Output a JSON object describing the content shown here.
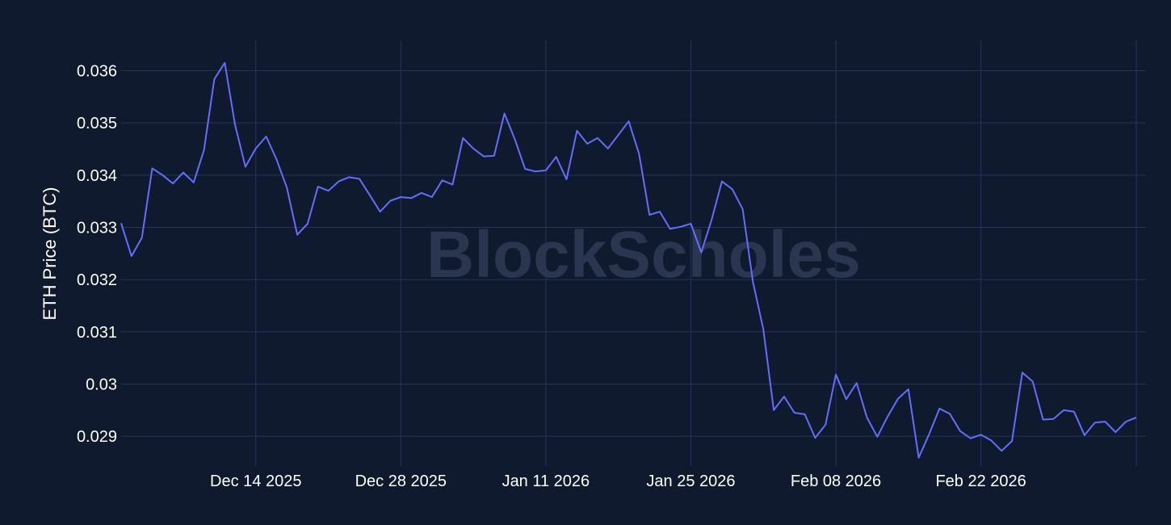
{
  "watermark": "BlockScholes",
  "chart_data": {
    "type": "line",
    "title": "",
    "xlabel": "",
    "ylabel": "ETH Price (BTC)",
    "x_tick_labels": [
      "Dec 14 2025",
      "Dec 28 2025",
      "Jan 11 2026",
      "Jan 25 2026",
      "Feb 08 2026",
      "Feb 22 2026"
    ],
    "x_tick_dates": [
      "2025-12-14",
      "2025-12-28",
      "2026-01-11",
      "2026-01-25",
      "2026-02-08",
      "2026-02-22"
    ],
    "y_tick_labels": [
      "0.029",
      "0.03",
      "0.031",
      "0.032",
      "0.033",
      "0.034",
      "0.035",
      "0.036"
    ],
    "y_ticks": [
      0.029,
      0.03,
      0.031,
      0.032,
      0.033,
      0.034,
      0.035,
      0.036
    ],
    "xlim": [
      "2025-12-01",
      "2026-03-09"
    ],
    "ylim": [
      0.02843,
      0.03658
    ],
    "grid": true,
    "line_color": "#636efa",
    "background_color": "#101a2e",
    "grid_color": "#26345a",
    "series": [
      {
        "x": [
          "2025-12-01",
          "2025-12-02",
          "2025-12-03",
          "2025-12-04",
          "2025-12-05",
          "2025-12-06",
          "2025-12-07",
          "2025-12-08",
          "2025-12-09",
          "2025-12-10",
          "2025-12-11",
          "2025-12-12",
          "2025-12-13",
          "2025-12-14",
          "2025-12-15",
          "2025-12-16",
          "2025-12-17",
          "2025-12-18",
          "2025-12-19",
          "2025-12-20",
          "2025-12-21",
          "2025-12-22",
          "2025-12-23",
          "2025-12-24",
          "2025-12-25",
          "2025-12-26",
          "2025-12-27",
          "2025-12-28",
          "2025-12-29",
          "2025-12-30",
          "2025-12-31",
          "2026-01-01",
          "2026-01-02",
          "2026-01-03",
          "2026-01-04",
          "2026-01-05",
          "2026-01-06",
          "2026-01-07",
          "2026-01-08",
          "2026-01-09",
          "2026-01-10",
          "2026-01-11",
          "2026-01-12",
          "2026-01-13",
          "2026-01-14",
          "2026-01-15",
          "2026-01-16",
          "2026-01-17",
          "2026-01-18",
          "2026-01-19",
          "2026-01-20",
          "2026-01-21",
          "2026-01-22",
          "2026-01-23",
          "2026-01-24",
          "2026-01-25",
          "2026-01-26",
          "2026-01-27",
          "2026-01-28",
          "2026-01-29",
          "2026-01-30",
          "2026-01-31",
          "2026-02-01",
          "2026-02-02",
          "2026-02-03",
          "2026-02-04",
          "2026-02-05",
          "2026-02-06",
          "2026-02-07",
          "2026-02-08",
          "2026-02-09",
          "2026-02-10",
          "2026-02-11",
          "2026-02-12",
          "2026-02-13",
          "2026-02-14",
          "2026-02-15",
          "2026-02-16",
          "2026-02-17",
          "2026-02-18",
          "2026-02-19",
          "2026-02-20",
          "2026-02-21",
          "2026-02-22",
          "2026-02-23",
          "2026-02-24",
          "2026-02-25",
          "2026-02-26",
          "2026-02-27",
          "2026-02-28",
          "2026-03-01",
          "2026-03-02",
          "2026-03-03",
          "2026-03-04",
          "2026-03-05",
          "2026-03-06",
          "2026-03-07",
          "2026-03-08",
          "2026-03-09"
        ],
        "values": [
          0.03308,
          0.03245,
          0.0328,
          0.03413,
          0.034,
          0.03384,
          0.03405,
          0.03386,
          0.03448,
          0.03584,
          0.03615,
          0.03496,
          0.03416,
          0.03451,
          0.03474,
          0.0343,
          0.03376,
          0.03286,
          0.03307,
          0.03378,
          0.0337,
          0.03388,
          0.03396,
          0.03393,
          0.03362,
          0.0333,
          0.03351,
          0.03358,
          0.03356,
          0.03366,
          0.03358,
          0.0339,
          0.03382,
          0.03471,
          0.03451,
          0.03436,
          0.03437,
          0.03518,
          0.03469,
          0.03412,
          0.03407,
          0.03409,
          0.03435,
          0.03392,
          0.03485,
          0.0346,
          0.03471,
          0.03451,
          0.03477,
          0.03503,
          0.03441,
          0.03324,
          0.0333,
          0.03297,
          0.03301,
          0.03307,
          0.03252,
          0.03314,
          0.03388,
          0.03373,
          0.03335,
          0.03195,
          0.03105,
          0.0295,
          0.02976,
          0.02945,
          0.02942,
          0.02897,
          0.02922,
          0.03018,
          0.02971,
          0.03002,
          0.02936,
          0.02899,
          0.02938,
          0.02972,
          0.0299,
          0.02859,
          0.02904,
          0.02953,
          0.02943,
          0.0291,
          0.02896,
          0.02903,
          0.02892,
          0.02872,
          0.02891,
          0.03022,
          0.03005,
          0.02932,
          0.02933,
          0.0295,
          0.02947,
          0.02902,
          0.02926,
          0.02928,
          0.02908,
          0.02928,
          0.02936
        ]
      }
    ]
  }
}
